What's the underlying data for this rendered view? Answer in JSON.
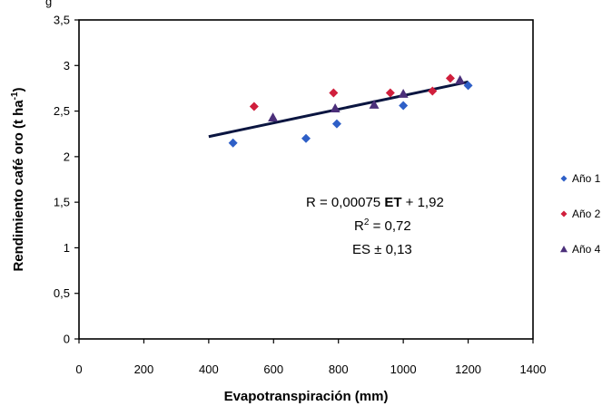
{
  "top_fragment": "g",
  "chart_data": {
    "type": "scatter",
    "xlabel": "Evapotranspiración (mm)",
    "ylabel_main": "Rendimiento café oro (t ha",
    "ylabel_sup": "-1",
    "ylabel_close": ")",
    "xlim": [
      0,
      1400
    ],
    "ylim": [
      0,
      3.5
    ],
    "x_ticks": [
      0,
      200,
      400,
      600,
      800,
      1000,
      1200,
      1400
    ],
    "x_tick_labels": [
      "0",
      "200",
      "400",
      "600",
      "800",
      "1000",
      "1200",
      "1400"
    ],
    "y_ticks": [
      0,
      0.5,
      1,
      1.5,
      2,
      2.5,
      3,
      3.5
    ],
    "y_tick_labels": [
      "0",
      "0,5",
      "1",
      "1,5",
      "2",
      "2,5",
      "3",
      "3,5"
    ],
    "legend_position": "right",
    "series": [
      {
        "name": "Año 1",
        "marker": "diamond",
        "color": "#2e5fc7",
        "points": [
          [
            475,
            2.15
          ],
          [
            700,
            2.2
          ],
          [
            795,
            2.36
          ],
          [
            1000,
            2.56
          ],
          [
            1200,
            2.78
          ]
        ]
      },
      {
        "name": "Año 2",
        "marker": "diamond",
        "color": "#d01f3c",
        "points": [
          [
            540,
            2.55
          ],
          [
            785,
            2.7
          ],
          [
            960,
            2.7
          ],
          [
            1090,
            2.72
          ],
          [
            1145,
            2.86
          ]
        ]
      },
      {
        "name": "Año 4",
        "marker": "triangle",
        "color": "#4b2f7a",
        "points": [
          [
            598,
            2.43
          ],
          [
            790,
            2.53
          ],
          [
            910,
            2.57
          ],
          [
            1000,
            2.69
          ],
          [
            1175,
            2.84
          ]
        ]
      }
    ],
    "trendline": {
      "x_start": 400,
      "x_end": 1200,
      "slope": 0.00075,
      "intercept": 1.92,
      "color": "#0a1540"
    },
    "annotation": {
      "eq_prefix": "R = 0,00075 ",
      "eq_bold": "ET",
      "eq_suffix": " + 1,92",
      "r2_prefix": "R",
      "r2_sup": "2",
      "r2_suffix": " = 0,72",
      "es": "ES ± 0,13"
    }
  }
}
